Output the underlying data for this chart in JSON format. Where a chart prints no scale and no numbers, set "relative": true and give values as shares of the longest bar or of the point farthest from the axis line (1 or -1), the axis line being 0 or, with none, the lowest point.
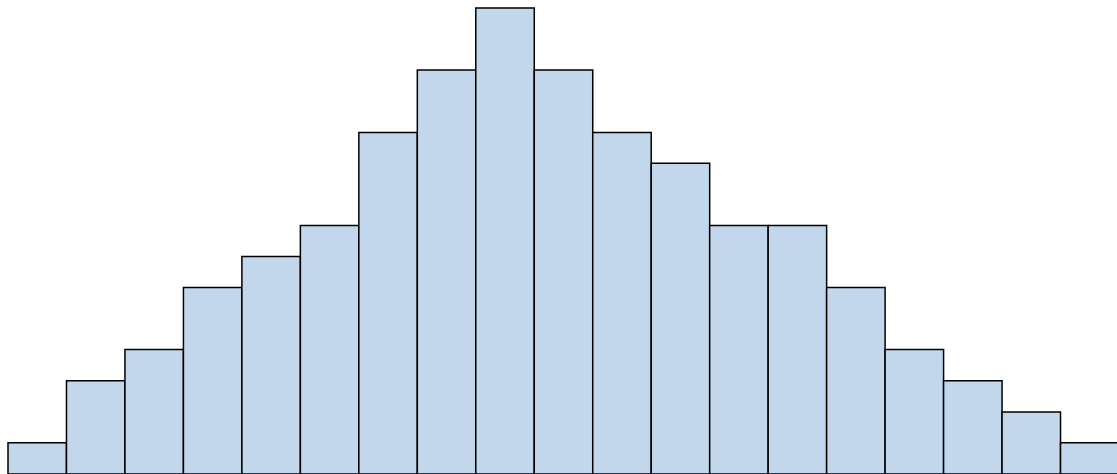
{
  "chart_data": {
    "type": "bar",
    "relative": true,
    "color": "#c3d7ec",
    "categories": [
      null,
      null,
      null,
      null,
      null,
      null,
      null,
      null,
      null,
      null,
      null,
      null,
      null,
      null,
      null,
      null,
      null,
      null,
      null
    ],
    "values": [
      0.067,
      0.2,
      0.267,
      0.4,
      0.467,
      0.533,
      0.733,
      0.867,
      1,
      0.867,
      0.733,
      0.667,
      0.533,
      0.533,
      0.4,
      0.267,
      0.2,
      0.133,
      0.067
    ]
  }
}
